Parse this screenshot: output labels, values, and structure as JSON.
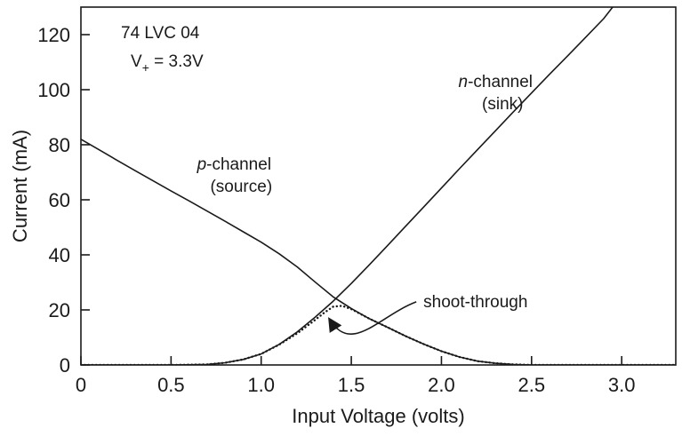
{
  "chart_data": {
    "type": "line",
    "title": "",
    "xlabel": "Input Voltage (volts)",
    "ylabel": "Current (mA)",
    "xlim": [
      0,
      3.3
    ],
    "ylim": [
      0,
      130
    ],
    "xticks": [
      0,
      0.5,
      1.0,
      1.5,
      2.0,
      2.5,
      3.0
    ],
    "xtick_labels": [
      "0",
      "0.5",
      "1.0",
      "1.5",
      "2.0",
      "2.5",
      "3.0"
    ],
    "yticks": [
      0,
      20,
      40,
      60,
      80,
      100,
      120
    ],
    "ytick_labels": [
      "0",
      "20",
      "40",
      "60",
      "80",
      "100",
      "120"
    ],
    "grid": false,
    "legend": "none",
    "device_label": "74 LVC 04",
    "supply_label": {
      "main": "V",
      "subscript": "+",
      "rest": " = 3.3V"
    },
    "series": [
      {
        "name": "p-channel (source)",
        "style": "solid",
        "x": [
          0,
          0.1,
          0.2,
          0.3,
          0.4,
          0.5,
          0.6,
          0.7,
          0.8,
          0.9,
          1.0,
          1.1,
          1.2,
          1.3,
          1.4,
          1.5,
          1.6,
          1.7,
          1.8,
          1.9,
          2.0,
          2.1,
          2.2,
          2.3,
          2.4,
          2.5,
          2.6,
          2.7,
          2.8,
          2.9,
          3.0,
          3.1,
          3.2,
          3.3
        ],
        "values": [
          82,
          78.2,
          74.4,
          70.6,
          66.9,
          63.2,
          59.6,
          55.9,
          52.2,
          48.4,
          44.6,
          40.4,
          35.6,
          30.1,
          24.7,
          20.5,
          16.8,
          13.7,
          10.5,
          7.6,
          5.0,
          2.9,
          1.4,
          0.6,
          0.2,
          0,
          0,
          0,
          0,
          0,
          0,
          0,
          0,
          0
        ]
      },
      {
        "name": "n-channel (sink)",
        "style": "solid",
        "x": [
          0,
          0.5,
          0.7,
          0.8,
          0.9,
          1.0,
          1.1,
          1.2,
          1.3,
          1.4,
          1.5,
          1.6,
          1.7,
          1.8,
          1.9,
          2.0,
          2.1,
          2.2,
          2.3,
          2.4,
          2.5,
          2.6,
          2.7,
          2.8,
          2.9,
          2.95
        ],
        "values": [
          0,
          0,
          0.2,
          0.8,
          2.0,
          4.0,
          7.5,
          12.0,
          17.4,
          23.2,
          29.6,
          36.4,
          43.3,
          50.3,
          57.3,
          64.3,
          71.3,
          78.2,
          85.1,
          92.0,
          98.8,
          105.6,
          112.3,
          119.0,
          125.8,
          130
        ]
      },
      {
        "name": "shoot-through",
        "style": "dotted",
        "x": [
          0,
          0.5,
          0.7,
          0.8,
          0.9,
          1.0,
          1.1,
          1.2,
          1.3,
          1.35,
          1.4,
          1.45,
          1.5,
          1.6,
          1.7,
          1.8,
          1.9,
          2.0,
          2.1,
          2.2,
          2.3,
          2.4,
          2.5,
          2.6,
          3.0,
          3.3
        ],
        "values": [
          0,
          0,
          0.2,
          0.8,
          2.0,
          4.0,
          7.4,
          11.5,
          16.4,
          19.0,
          21.2,
          21.5,
          20.3,
          16.8,
          13.7,
          10.5,
          7.6,
          5.0,
          2.9,
          1.4,
          0.6,
          0.2,
          0,
          0,
          0,
          0
        ]
      }
    ],
    "annotations": [
      {
        "name": "n-channel-label",
        "line1_italic": "n",
        "line1_rest": "-channel",
        "line2": "(sink)",
        "x": 2.3,
        "y": 101
      },
      {
        "name": "p-channel-label",
        "line1_italic": "p",
        "line1_rest": "-channel",
        "line2": "(source)",
        "x": 0.85,
        "y": 71
      },
      {
        "name": "shoot-through-label",
        "text": "shoot-through",
        "x": 1.9,
        "y": 21,
        "arrow_to": [
          1.38,
          16.5
        ]
      }
    ]
  }
}
